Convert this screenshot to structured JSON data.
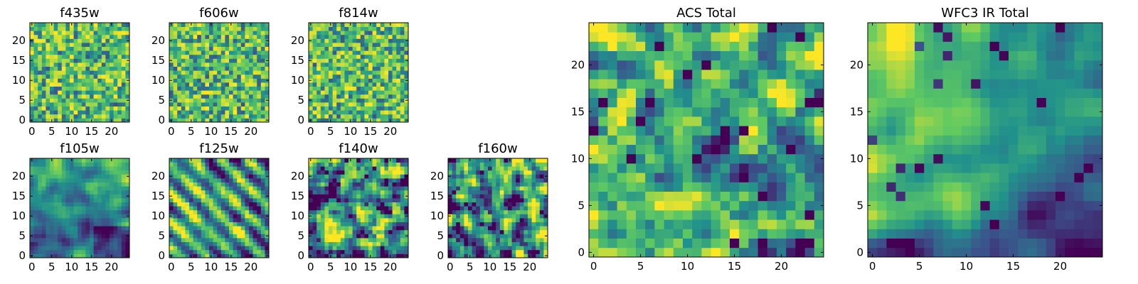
{
  "figure": {
    "colormap": "viridis",
    "colors": [
      "#440154",
      "#3b528b",
      "#21918c",
      "#5ec962",
      "#fde725"
    ]
  },
  "chart_data": [
    {
      "type": "heatmap",
      "title": "f435w",
      "grid_size": 25,
      "pattern": "noise",
      "seed": 11,
      "x_ticks": [
        0,
        5,
        10,
        15,
        20
      ],
      "y_ticks": [
        0,
        5,
        10,
        15,
        20
      ],
      "xlim": [
        -0.5,
        24.5
      ],
      "ylim": [
        -0.5,
        24.5
      ]
    },
    {
      "type": "heatmap",
      "title": "f606w",
      "grid_size": 25,
      "pattern": "noise",
      "seed": 23,
      "x_ticks": [
        0,
        5,
        10,
        15,
        20
      ],
      "y_ticks": [
        0,
        5,
        10,
        15,
        20
      ],
      "xlim": [
        -0.5,
        24.5
      ],
      "ylim": [
        -0.5,
        24.5
      ]
    },
    {
      "type": "heatmap",
      "title": "f814w",
      "grid_size": 25,
      "pattern": "noise",
      "seed": 37,
      "x_ticks": [
        0,
        5,
        10,
        15,
        20
      ],
      "y_ticks": [
        0,
        5,
        10,
        15,
        20
      ],
      "xlim": [
        -0.5,
        24.5
      ],
      "ylim": [
        -0.5,
        24.5
      ]
    },
    {
      "type": "heatmap",
      "title": "f105w",
      "grid_size": 25,
      "pattern": "smooth",
      "seed": 41,
      "x_ticks": [
        0,
        5,
        10,
        15,
        20
      ],
      "y_ticks": [
        0,
        5,
        10,
        15,
        20
      ],
      "xlim": [
        -0.5,
        24.5
      ],
      "ylim": [
        -0.5,
        24.5
      ]
    },
    {
      "type": "heatmap",
      "title": "f125w",
      "grid_size": 25,
      "pattern": "stripes",
      "seed": 53,
      "x_ticks": [
        0,
        5,
        10,
        15,
        20
      ],
      "y_ticks": [
        0,
        5,
        10,
        15,
        20
      ],
      "xlim": [
        -0.5,
        24.5
      ],
      "ylim": [
        -0.5,
        24.5
      ]
    },
    {
      "type": "heatmap",
      "title": "f140w",
      "grid_size": 25,
      "pattern": "blobs",
      "seed": 67,
      "x_ticks": [
        0,
        5,
        10,
        15,
        20
      ],
      "y_ticks": [
        0,
        5,
        10,
        15,
        20
      ],
      "xlim": [
        -0.5,
        24.5
      ],
      "ylim": [
        -0.5,
        24.5
      ]
    },
    {
      "type": "heatmap",
      "title": "f160w",
      "grid_size": 25,
      "pattern": "blobs",
      "seed": 79,
      "x_ticks": [
        0,
        5,
        10,
        15,
        20
      ],
      "y_ticks": [
        0,
        5,
        10,
        15,
        20
      ],
      "xlim": [
        -0.5,
        24.5
      ],
      "ylim": [
        -0.5,
        24.5
      ]
    },
    {
      "type": "heatmap",
      "title": "ACS Total",
      "grid_size": 25,
      "pattern": "acs",
      "seed": 83,
      "x_ticks": [
        0,
        5,
        10,
        15,
        20
      ],
      "y_ticks": [
        0,
        5,
        10,
        15,
        20
      ],
      "xlim": [
        -0.5,
        24.5
      ],
      "ylim": [
        -0.5,
        24.5
      ]
    },
    {
      "type": "heatmap",
      "title": "WFC3 IR Total",
      "grid_size": 25,
      "pattern": "ir",
      "seed": 97,
      "x_ticks": [
        0,
        5,
        10,
        15,
        20
      ],
      "y_ticks": [
        0,
        5,
        10,
        15,
        20
      ],
      "xlim": [
        -0.5,
        24.5
      ],
      "ylim": [
        -0.5,
        24.5
      ]
    }
  ]
}
